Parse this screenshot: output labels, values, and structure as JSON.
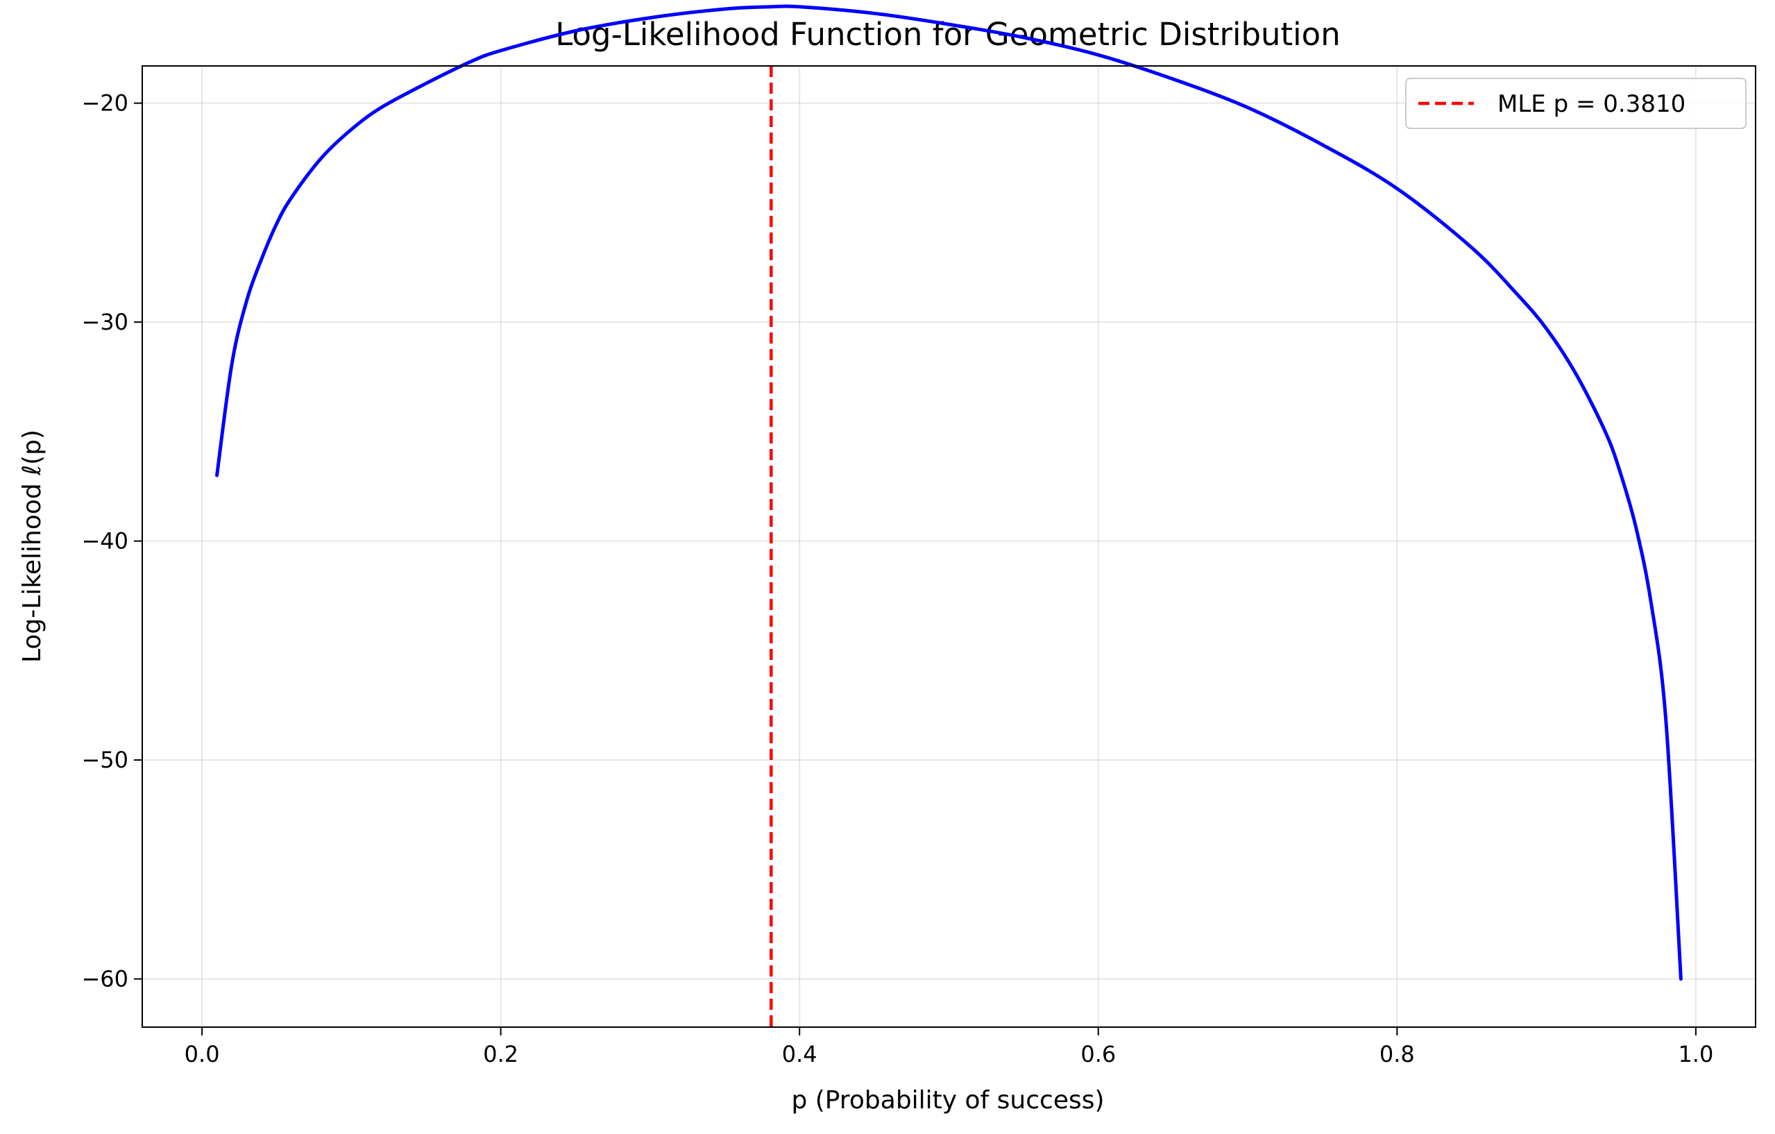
{
  "chart_data": {
    "type": "line",
    "title": "Log-Likelihood Function for Geometric Distribution",
    "xlabel": "p (Probability of success)",
    "ylabel": "Log-Likelihood ℓ(p)",
    "xlim": [
      -0.04,
      1.04
    ],
    "ylim": [
      -62.2,
      -18.3
    ],
    "x_ticks": [
      {
        "value": 0.0,
        "label": "0.0"
      },
      {
        "value": 0.2,
        "label": "0.2"
      },
      {
        "value": 0.4,
        "label": "0.4"
      },
      {
        "value": 0.6,
        "label": "0.6"
      },
      {
        "value": 0.8,
        "label": "0.8"
      },
      {
        "value": 1.0,
        "label": "1.0"
      }
    ],
    "y_ticks": [
      {
        "value": -20,
        "label": "−20"
      },
      {
        "value": -30,
        "label": "−30"
      },
      {
        "value": -40,
        "label": "−40"
      },
      {
        "value": -50,
        "label": "−50"
      },
      {
        "value": -60,
        "label": "−60"
      }
    ],
    "grid": true,
    "legend_position": "top-right",
    "series": [
      {
        "color": "#0000ff",
        "style": "solid",
        "x": [
          0.01,
          0.02,
          0.03,
          0.04,
          0.05,
          0.06,
          0.08,
          0.1,
          0.12,
          0.15,
          0.18,
          0.2,
          0.25,
          0.3,
          0.35,
          0.381,
          0.4,
          0.45,
          0.5,
          0.55,
          0.6,
          0.65,
          0.7,
          0.75,
          0.8,
          0.85,
          0.88,
          0.9,
          0.92,
          0.94,
          0.95,
          0.96,
          0.97,
          0.98,
          0.99
        ],
        "y": [
          -37.0,
          -31.9,
          -29.0,
          -27.1,
          -25.5,
          -24.3,
          -22.5,
          -21.2,
          -20.2,
          -19.1,
          -18.1,
          -17.6,
          -16.7,
          -16.1,
          -15.7,
          -15.6,
          -15.6,
          -15.9,
          -16.4,
          -17.0,
          -17.8,
          -18.9,
          -20.2,
          -21.9,
          -23.9,
          -26.6,
          -28.7,
          -30.3,
          -32.4,
          -35.1,
          -37.0,
          -39.4,
          -42.8,
          -48.2,
          -60.0
        ]
      },
      {
        "name": "MLE p = 0.3810",
        "color": "#ff0000",
        "style": "dashed",
        "type": "vline",
        "x": 0.381
      }
    ]
  }
}
